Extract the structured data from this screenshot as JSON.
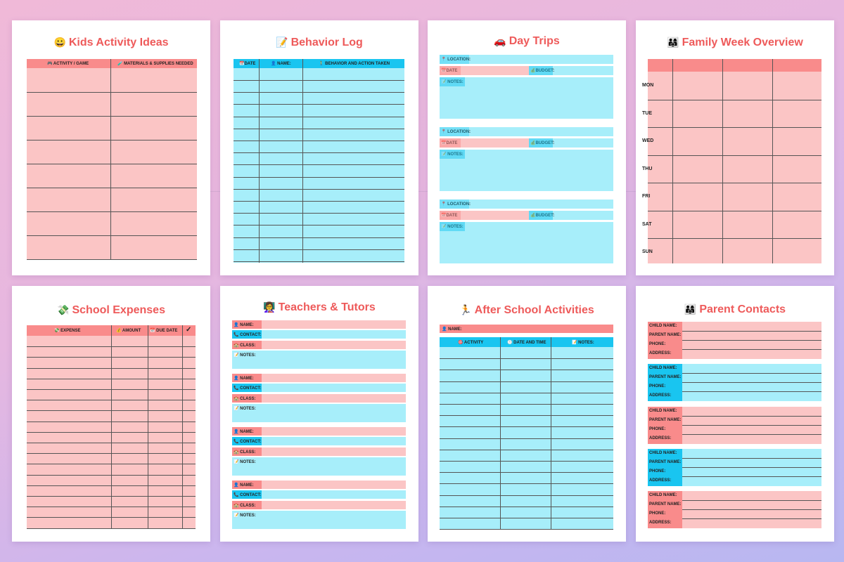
{
  "pages": {
    "kids": {
      "emoji": "😀",
      "title": "Kids Activity Ideas",
      "col1": "🎮 ACTIVITY / GAME",
      "col2": "🧪 MATERIALS & SUPPLIES NEEDED"
    },
    "behavior": {
      "emoji": "📝",
      "title": "Behavior Log",
      "col1": "📅DATE",
      "col2": "👤 NAME:",
      "col3": "🚶 BEHAVIOR AND ACTION TAKEN"
    },
    "daytrips": {
      "emoji": "🚗",
      "title": "Day Trips",
      "location": "📍 LOCATION:",
      "date": "📅DATE",
      "budget": "💰BUDGET:",
      "notes": "📝 NOTES:"
    },
    "family": {
      "emoji": "👨‍👩‍👧",
      "title": "Family Week Overview",
      "days": [
        "MON",
        "TUE",
        "WED",
        "THU",
        "FRI",
        "SAT",
        "SUN"
      ]
    },
    "expenses": {
      "emoji": "💸",
      "title": "School Expenses",
      "col1": "💸 EXPENSE",
      "col2": "💰 AMOUNT",
      "col3": "📅 DUE DATE",
      "col4": "✓"
    },
    "teachers": {
      "emoji": "👩‍🏫",
      "title": "Teachers & Tutors",
      "name": "👤 NAME:",
      "contact": "📞 CONTACT:",
      "class": "🏫 CLASS:",
      "notes": "📝 NOTES:"
    },
    "afterschool": {
      "emoji": "🏃",
      "title": "After School Activities",
      "name": "👤 NAME:",
      "col1": "🎯 ACTIVITY",
      "col2": "🕒 DATE AND TIME",
      "col3": "📝 NOTES:"
    },
    "contacts": {
      "emoji": "👨‍👩‍👧",
      "title": "Parent Contacts",
      "child": "CHILD NAME:",
      "parent": "PARENT NAME:",
      "phone": "PHONE:",
      "address": "ADDRESS:"
    }
  },
  "colors": {
    "pink": "#fbc5c5",
    "pink_dark": "#f98b8b",
    "blue": "#a7eefa",
    "blue_dark": "#19c5f0",
    "title": "#ee5a5a"
  }
}
